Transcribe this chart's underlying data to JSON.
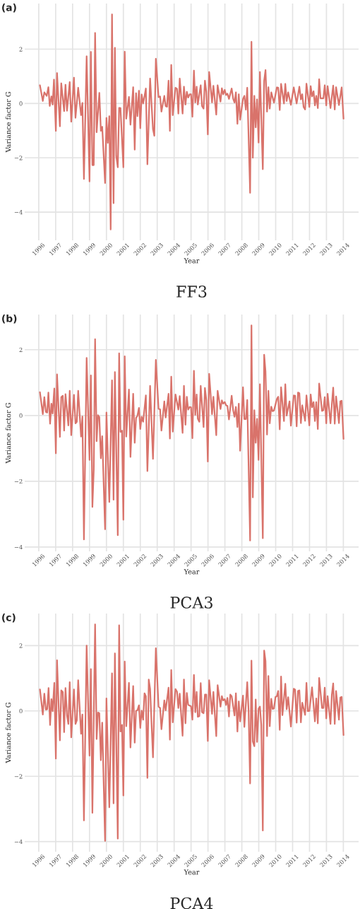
{
  "chart_data": [
    {
      "type": "line",
      "title": "FF3",
      "xlabel": "Year",
      "ylabel": "Variance factor G",
      "annotations": [
        "(a)"
      ],
      "grid": true,
      "xlim": [
        1995.17,
        2014.9
      ],
      "ylim": [
        -5.04,
        3.68
      ],
      "xticks": [
        1996,
        1997,
        1998,
        1999,
        2000,
        2001,
        2002,
        2003,
        2004,
        2005,
        2006,
        2007,
        2008,
        2009,
        2010,
        2011,
        2012,
        2013,
        2014
      ],
      "yticks": [
        -4,
        -2,
        0,
        2
      ],
      "series": [
        {
          "color": "#d9736b",
          "x": [
            1996.07,
            1996.24,
            1996.33,
            1996.47,
            1996.57,
            1996.65,
            1996.75,
            1996.82,
            1996.9,
            1997.01,
            1997.08,
            1997.25,
            1997.33,
            1997.5,
            1997.58,
            1997.67,
            1997.83,
            1997.92,
            1998.08,
            1998.17,
            1998.33,
            1998.5,
            1998.58,
            1998.67,
            1998.83,
            1999.0,
            1999.08,
            1999.17,
            1999.25,
            1999.33,
            1999.42,
            1999.58,
            1999.67,
            1999.75,
            1999.92,
            2000.0,
            2000.08,
            2000.17,
            2000.25,
            2000.33,
            2000.42,
            2000.5,
            2000.58,
            2000.67,
            2000.75,
            2000.83,
            2001.0,
            2001.08,
            2001.17,
            2001.33,
            2001.42,
            2001.58,
            2001.67,
            2001.75,
            2001.83,
            2001.92,
            2002.0,
            2002.08,
            2002.17,
            2002.33,
            2002.42,
            2002.58,
            2002.75,
            2002.83,
            2002.92,
            2003.08,
            2003.17,
            2003.25,
            2003.42,
            2003.5,
            2003.58,
            2003.67,
            2003.75,
            2003.83,
            2003.92,
            2004.08,
            2004.17,
            2004.25,
            2004.33,
            2004.5,
            2004.58,
            2004.67,
            2004.75,
            2004.83,
            2004.92,
            2005.0,
            2005.08,
            2005.17,
            2005.25,
            2005.33,
            2005.4,
            2005.57,
            2005.65,
            2005.74,
            2005.82,
            2005.9,
            2005.99,
            2006.07,
            2006.24,
            2006.32,
            2006.49,
            2006.57,
            2006.74,
            2006.82,
            2006.9,
            2006.99,
            2007.07,
            2007.15,
            2007.24,
            2007.4,
            2007.49,
            2007.57,
            2007.65,
            2007.74,
            2007.82,
            2007.9,
            2008.07,
            2008.15,
            2008.24,
            2008.32,
            2008.49,
            2008.57,
            2008.65,
            2008.74,
            2008.82,
            2008.9,
            2008.99,
            2009.07,
            2009.24,
            2009.32,
            2009.4,
            2009.49,
            2009.57,
            2009.65,
            2009.74,
            2009.9,
            2010.07,
            2010.15,
            2010.24,
            2010.32,
            2010.49,
            2010.57,
            2010.65,
            2010.74,
            2010.9,
            2011.07,
            2011.24,
            2011.4,
            2011.49,
            2011.57,
            2011.65,
            2011.74,
            2011.82,
            2011.99,
            2012.07,
            2012.15,
            2012.24,
            2012.32,
            2012.4,
            2012.49,
            2012.57,
            2012.65,
            2012.82,
            2012.9,
            2012.99,
            2013.07,
            2013.24,
            2013.4,
            2013.49,
            2013.57,
            2013.74,
            2013.9,
            2014.01
          ],
          "values": [
            0.67,
            0.09,
            0.41,
            0.28,
            0.6,
            -0.09,
            0.26,
            -0.04,
            0.88,
            -1.01,
            1.12,
            -0.84,
            0.74,
            -0.28,
            0.69,
            -0.27,
            0.79,
            -0.67,
            0.95,
            -0.53,
            0.58,
            -0.43,
            0.02,
            -2.78,
            1.74,
            -2.87,
            1.9,
            -2.27,
            -2.27,
            2.6,
            -1.06,
            0.39,
            -1.01,
            -0.86,
            -2.93,
            -0.53,
            -1.45,
            -0.47,
            -4.64,
            3.28,
            -3.67,
            2.05,
            -1.94,
            -2.35,
            -0.16,
            -0.17,
            -2.35,
            1.91,
            -0.56,
            0.24,
            -0.78,
            0.6,
            -1.7,
            0.38,
            -0.47,
            0.47,
            -0.91,
            0.33,
            0.0,
            0.55,
            -2.24,
            0.92,
            -0.95,
            -1.19,
            1.65,
            0.23,
            0.26,
            -0.3,
            0.28,
            -0.1,
            -0.12,
            0.84,
            -1.01,
            1.42,
            -0.43,
            0.58,
            0.54,
            -0.37,
            0.92,
            -0.37,
            0.62,
            -0.04,
            0.43,
            0.22,
            0.34,
            0.34,
            -0.49,
            1.21,
            0.04,
            0.62,
            -0.04,
            0.67,
            -0.1,
            -0.19,
            0.84,
            0.43,
            -1.14,
            1.16,
            0.04,
            0.65,
            -0.41,
            0.67,
            0.07,
            0.56,
            0.34,
            0.5,
            0.31,
            0.36,
            0.17,
            0.55,
            0.17,
            0.03,
            0.41,
            -0.75,
            0.34,
            -0.6,
            0.17,
            0.28,
            -0.23,
            0.58,
            -3.29,
            2.27,
            -2.0,
            0.28,
            -0.88,
            0.15,
            -1.44,
            1.16,
            -2.42,
            0.84,
            1.23,
            -0.3,
            0.6,
            -0.19,
            0.41,
            0.03,
            0.59,
            0.58,
            -0.24,
            0.72,
            0.0,
            0.72,
            0.09,
            0.41,
            -0.05,
            0.59,
            0.0,
            0.62,
            0.15,
            0.34,
            -0.13,
            -0.22,
            0.73,
            -0.13,
            0.64,
            0.26,
            0.45,
            -0.07,
            0.28,
            -0.17,
            0.89,
            0.19,
            0.19,
            0.67,
            -0.07,
            0.64,
            -0.17,
            0.66,
            -0.22,
            0.6,
            -0.06,
            0.59,
            -0.56
          ]
        }
      ]
    },
    {
      "type": "line",
      "title": "PCA3",
      "xlabel": "Year",
      "ylabel": "Variance factor G",
      "annotations": [
        "(b)"
      ],
      "grid": true,
      "xlim": [
        1995.17,
        2014.9
      ],
      "ylim": [
        -4.13,
        3.07
      ],
      "xticks": [
        1996,
        1997,
        1998,
        1999,
        2000,
        2001,
        2002,
        2003,
        2004,
        2005,
        2006,
        2007,
        2008,
        2009,
        2010,
        2011,
        2012,
        2013,
        2014
      ],
      "yticks": [
        -4,
        -2,
        0,
        2
      ],
      "series": [
        {
          "color": "#d9736b",
          "x": [
            1996.07,
            1996.24,
            1996.33,
            1996.42,
            1996.5,
            1996.57,
            1996.67,
            1996.75,
            1996.82,
            1996.92,
            1997.01,
            1997.08,
            1997.25,
            1997.33,
            1997.42,
            1997.5,
            1997.58,
            1997.75,
            1997.83,
            1997.92,
            1998.08,
            1998.17,
            1998.25,
            1998.33,
            1998.5,
            1998.58,
            1998.67,
            1998.83,
            1999.0,
            1999.08,
            1999.17,
            1999.25,
            1999.33,
            1999.42,
            1999.5,
            1999.58,
            1999.67,
            1999.75,
            1999.92,
            2000.0,
            2000.17,
            2000.33,
            2000.42,
            2000.5,
            2000.67,
            2000.75,
            2000.83,
            2000.92,
            2001.0,
            2001.08,
            2001.17,
            2001.33,
            2001.42,
            2001.58,
            2001.67,
            2001.75,
            2001.83,
            2001.92,
            2002.0,
            2002.08,
            2002.17,
            2002.33,
            2002.42,
            2002.58,
            2002.75,
            2002.92,
            2003.08,
            2003.17,
            2003.25,
            2003.42,
            2003.5,
            2003.67,
            2003.75,
            2003.83,
            2003.92,
            2004.08,
            2004.25,
            2004.33,
            2004.5,
            2004.58,
            2004.67,
            2004.75,
            2004.83,
            2004.92,
            2005.0,
            2005.08,
            2005.17,
            2005.25,
            2005.33,
            2005.4,
            2005.49,
            2005.57,
            2005.74,
            2005.82,
            2005.9,
            2005.99,
            2006.07,
            2006.24,
            2006.32,
            2006.49,
            2006.57,
            2006.74,
            2006.82,
            2006.9,
            2006.99,
            2007.07,
            2007.15,
            2007.24,
            2007.4,
            2007.49,
            2007.57,
            2007.65,
            2007.74,
            2007.82,
            2007.9,
            2008.07,
            2008.15,
            2008.24,
            2008.32,
            2008.49,
            2008.57,
            2008.65,
            2008.74,
            2008.82,
            2008.9,
            2008.99,
            2009.07,
            2009.24,
            2009.32,
            2009.4,
            2009.49,
            2009.57,
            2009.65,
            2009.74,
            2009.82,
            2009.9,
            2010.07,
            2010.15,
            2010.24,
            2010.32,
            2010.49,
            2010.57,
            2010.65,
            2010.82,
            2010.9,
            2011.07,
            2011.15,
            2011.24,
            2011.32,
            2011.4,
            2011.49,
            2011.57,
            2011.74,
            2011.82,
            2011.99,
            2012.07,
            2012.15,
            2012.24,
            2012.32,
            2012.4,
            2012.49,
            2012.57,
            2012.74,
            2012.82,
            2012.9,
            2012.99,
            2013.07,
            2013.24,
            2013.32,
            2013.4,
            2013.49,
            2013.57,
            2013.74,
            2013.82,
            2013.9,
            2014.01
          ],
          "values": [
            0.71,
            0.04,
            0.56,
            0.11,
            0.09,
            0.7,
            -0.25,
            0.36,
            0.06,
            0.82,
            -1.15,
            1.25,
            -0.65,
            0.56,
            0.6,
            -0.46,
            0.65,
            -0.3,
            0.75,
            -0.6,
            0.63,
            -0.24,
            -0.19,
            0.75,
            -0.64,
            -0.03,
            -3.77,
            1.75,
            -1.35,
            1.22,
            -2.78,
            -1.65,
            2.32,
            -0.78,
            0.01,
            -0.05,
            -1.3,
            -0.63,
            -3.46,
            0.09,
            -2.63,
            1.07,
            -2.56,
            1.32,
            -3.64,
            1.89,
            -0.5,
            -0.46,
            -3.17,
            1.8,
            -0.64,
            0.79,
            -1.26,
            0.66,
            -0.83,
            -0.07,
            -0.01,
            0.23,
            -0.41,
            -0.04,
            -0.19,
            0.61,
            -1.69,
            0.9,
            -1.32,
            1.69,
            0.2,
            0.19,
            -0.46,
            0.43,
            -0.06,
            0.66,
            -0.7,
            1.18,
            -0.49,
            0.64,
            0.18,
            0.59,
            -0.53,
            0.9,
            -0.28,
            0.57,
            0.18,
            0.26,
            0.25,
            -0.69,
            1.36,
            0.02,
            0.64,
            -0.1,
            -0.19,
            0.9,
            -0.35,
            0.84,
            0.48,
            -1.4,
            1.27,
            0.04,
            0.57,
            -0.6,
            0.75,
            0.2,
            0.46,
            0.36,
            0.41,
            0.31,
            0.29,
            -0.12,
            0.6,
            0.15,
            -0.04,
            0.26,
            -0.35,
            0.36,
            -1.07,
            0.86,
            -0.11,
            -0.11,
            0.47,
            -3.8,
            2.74,
            -2.49,
            0.16,
            -0.83,
            -0.1,
            -1.35,
            0.95,
            -3.73,
            1.85,
            1.34,
            -0.58,
            0.75,
            -0.24,
            0.27,
            0.13,
            0.15,
            0.5,
            0.57,
            -0.42,
            0.86,
            -0.17,
            0.95,
            0.0,
            0.43,
            -0.31,
            0.61,
            0.6,
            -0.33,
            0.7,
            0.68,
            -0.23,
            0.31,
            -0.16,
            0.61,
            -0.3,
            0.64,
            0.25,
            0.41,
            -0.17,
            0.41,
            -0.41,
            0.97,
            0.14,
            0.16,
            0.56,
            -0.24,
            0.66,
            -0.24,
            0.34,
            0.85,
            -0.25,
            0.58,
            -0.23,
            0.43,
            0.45,
            -0.71
          ]
        }
      ]
    },
    {
      "type": "line",
      "title": "PCA4",
      "xlabel": "Year",
      "ylabel": "Variance factor G",
      "annotations": [
        "(c)"
      ],
      "grid": true,
      "xlim": [
        1995.17,
        2014.9
      ],
      "ylim": [
        -4.31,
        2.98
      ],
      "xticks": [
        1996,
        1997,
        1998,
        1999,
        2000,
        2001,
        2002,
        2003,
        2004,
        2005,
        2006,
        2007,
        2008,
        2009,
        2010,
        2011,
        2012,
        2013,
        2014
      ],
      "yticks": [
        -4,
        -2,
        0,
        2
      ],
      "series": [
        {
          "color": "#d9736b",
          "x": [
            1996.07,
            1996.24,
            1996.33,
            1996.42,
            1996.5,
            1996.58,
            1996.67,
            1996.75,
            1996.82,
            1996.92,
            1997.01,
            1997.08,
            1997.25,
            1997.33,
            1997.42,
            1997.5,
            1997.58,
            1997.67,
            1997.75,
            1997.83,
            1997.92,
            1998.08,
            1998.17,
            1998.25,
            1998.33,
            1998.5,
            1998.58,
            1998.67,
            1998.83,
            1999.0,
            1999.08,
            1999.17,
            1999.33,
            1999.42,
            1999.5,
            1999.58,
            1999.67,
            1999.75,
            1999.92,
            2000.0,
            2000.17,
            2000.33,
            2000.42,
            2000.5,
            2000.67,
            2000.75,
            2000.83,
            2000.92,
            2001.0,
            2001.08,
            2001.17,
            2001.33,
            2001.42,
            2001.58,
            2001.67,
            2001.75,
            2001.83,
            2001.92,
            2002.0,
            2002.08,
            2002.17,
            2002.25,
            2002.33,
            2002.42,
            2002.5,
            2002.58,
            2002.75,
            2002.92,
            2003.08,
            2003.17,
            2003.25,
            2003.42,
            2003.5,
            2003.67,
            2003.75,
            2003.83,
            2003.92,
            2004.08,
            2004.17,
            2004.25,
            2004.33,
            2004.5,
            2004.58,
            2004.67,
            2004.75,
            2004.83,
            2004.92,
            2005.0,
            2005.08,
            2005.17,
            2005.25,
            2005.33,
            2005.4,
            2005.49,
            2005.57,
            2005.65,
            2005.74,
            2005.82,
            2005.9,
            2005.99,
            2006.07,
            2006.24,
            2006.32,
            2006.49,
            2006.57,
            2006.74,
            2006.82,
            2006.9,
            2006.99,
            2007.07,
            2007.15,
            2007.24,
            2007.32,
            2007.4,
            2007.57,
            2007.65,
            2007.74,
            2007.82,
            2007.9,
            2008.07,
            2008.15,
            2008.32,
            2008.4,
            2008.49,
            2008.57,
            2008.65,
            2008.74,
            2008.82,
            2008.9,
            2008.99,
            2009.07,
            2009.15,
            2009.24,
            2009.32,
            2009.4,
            2009.49,
            2009.57,
            2009.65,
            2009.74,
            2009.82,
            2009.9,
            2009.99,
            2010.07,
            2010.15,
            2010.24,
            2010.32,
            2010.4,
            2010.57,
            2010.65,
            2010.74,
            2010.9,
            2011.07,
            2011.15,
            2011.24,
            2011.32,
            2011.4,
            2011.49,
            2011.57,
            2011.74,
            2011.82,
            2011.9,
            2011.99,
            2012.15,
            2012.32,
            2012.4,
            2012.49,
            2012.57,
            2012.74,
            2012.82,
            2012.9,
            2012.99,
            2013.07,
            2013.24,
            2013.32,
            2013.4,
            2013.49,
            2013.57,
            2013.74,
            2013.82,
            2013.9,
            2014.01
          ],
          "values": [
            0.66,
            -0.11,
            0.53,
            0.04,
            0.05,
            0.7,
            -0.43,
            0.36,
            -0.01,
            0.86,
            -1.46,
            1.55,
            -0.9,
            0.63,
            0.58,
            -0.65,
            0.7,
            -0.14,
            -0.4,
            0.88,
            -0.81,
            0.66,
            -0.4,
            -0.29,
            0.94,
            -0.7,
            -0.11,
            -3.35,
            2.0,
            -1.37,
            1.28,
            -3.12,
            2.65,
            -0.86,
            -0.05,
            -0.07,
            -1.51,
            -0.36,
            -3.98,
            0.38,
            -2.95,
            1.15,
            -2.83,
            1.76,
            -3.91,
            2.62,
            -0.63,
            -0.43,
            -2.59,
            1.51,
            -0.47,
            0.86,
            -1.12,
            0.76,
            -0.97,
            0.0,
            0.02,
            0.17,
            -0.52,
            0.01,
            -0.27,
            0.54,
            0.45,
            -2.05,
            0.96,
            0.68,
            -1.42,
            1.92,
            0.13,
            0.09,
            -0.56,
            0.32,
            0.02,
            0.71,
            -0.88,
            1.25,
            -0.35,
            0.67,
            0.59,
            0.09,
            0.53,
            -0.76,
            0.96,
            -0.38,
            0.55,
            0.19,
            0.16,
            0.14,
            -0.27,
            1.1,
            -0.04,
            0.58,
            -0.18,
            -0.16,
            0.85,
            -0.04,
            -0.07,
            0.5,
            0.5,
            -0.92,
            0.94,
            -0.09,
            0.58,
            -0.77,
            0.79,
            0.13,
            0.45,
            0.32,
            0.36,
            0.18,
            0.4,
            -0.17,
            0.5,
            0.45,
            -0.14,
            0.54,
            -0.63,
            0.29,
            -0.32,
            0.47,
            -0.49,
            0.88,
            0.0,
            -2.22,
            1.54,
            -0.94,
            -1.08,
            0.35,
            -0.95,
            0.07,
            0.13,
            -0.43,
            -3.66,
            1.85,
            1.53,
            -0.77,
            1.07,
            -0.47,
            0.37,
            0.06,
            0.07,
            0.43,
            0.45,
            0.61,
            -0.58,
            1.05,
            -0.13,
            0.83,
            0.05,
            0.42,
            -0.48,
            0.68,
            0.65,
            -0.36,
            0.61,
            0.63,
            -0.35,
            0.25,
            -0.12,
            0.86,
            -0.01,
            0.0,
            0.72,
            -0.32,
            0.38,
            -0.38,
            1.01,
            0.09,
            0.09,
            0.71,
            -0.23,
            0.45,
            -0.4,
            0.5,
            0.84,
            -0.4,
            0.61,
            -0.27,
            0.41,
            0.43,
            -0.74
          ]
        }
      ]
    }
  ]
}
